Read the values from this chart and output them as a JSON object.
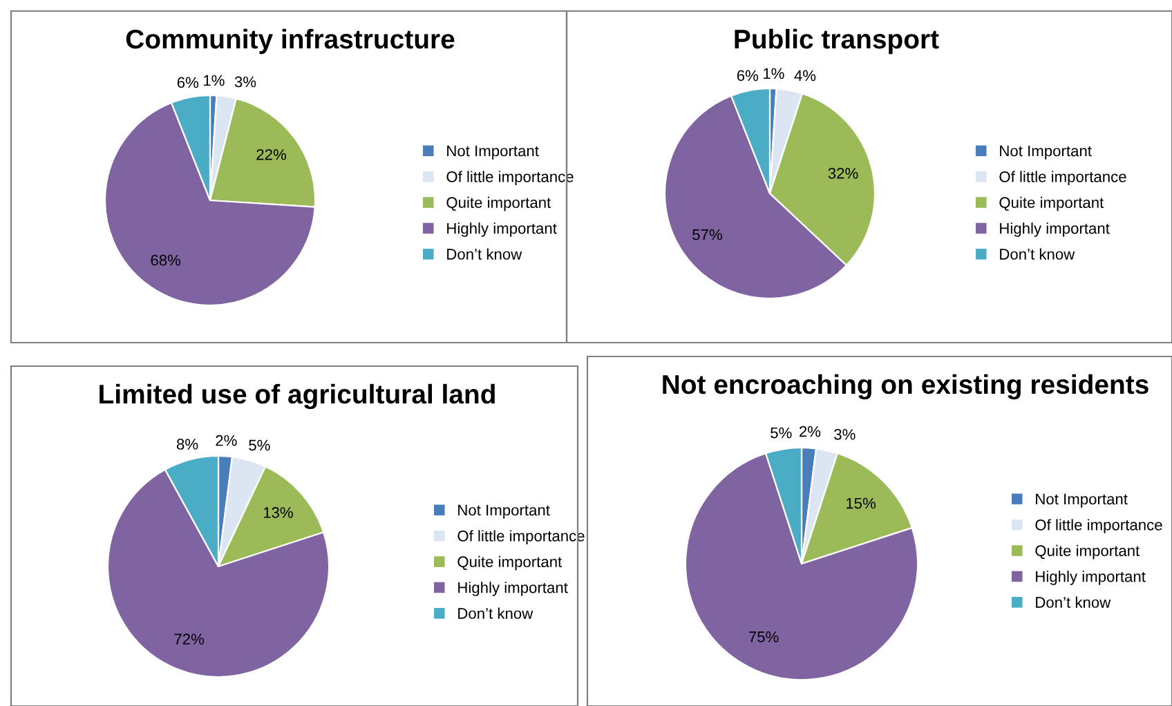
{
  "chart_data": [
    {
      "type": "pie",
      "title": "Community infrastructure",
      "categories": [
        "Not Important",
        "Of little importance",
        "Quite important",
        "Highly important",
        "Don’t know"
      ],
      "values": [
        1,
        3,
        22,
        68,
        6
      ],
      "value_labels": [
        "1%",
        "3%",
        "22%",
        "68%",
        "6%"
      ],
      "colors": [
        "#4a7ebb",
        "#dce6f2",
        "#9bbb59",
        "#8064a2",
        "#4bacc6"
      ],
      "legend": "right"
    },
    {
      "type": "pie",
      "title": "Public transport",
      "categories": [
        "Not Important",
        "Of little importance",
        "Quite important",
        "Highly important",
        "Don’t know"
      ],
      "values": [
        1,
        4,
        32,
        57,
        6
      ],
      "value_labels": [
        "1%",
        "4%",
        "32%",
        "57%",
        "6%"
      ],
      "colors": [
        "#4a7ebb",
        "#dce6f2",
        "#9bbb59",
        "#8064a2",
        "#4bacc6"
      ],
      "legend": "right"
    },
    {
      "type": "pie",
      "title": "Limited use of agricultural land",
      "categories": [
        "Not Important",
        "Of little importance",
        "Quite important",
        "Highly important",
        "Don’t know"
      ],
      "values": [
        2,
        5,
        13,
        72,
        8
      ],
      "value_labels": [
        "2%",
        "5%",
        "13%",
        "72%",
        "8%"
      ],
      "colors": [
        "#4a7ebb",
        "#dce6f2",
        "#9bbb59",
        "#8064a2",
        "#4bacc6"
      ],
      "legend": "right"
    },
    {
      "type": "pie",
      "title": "Not encroaching on existing residents",
      "categories": [
        "Not Important",
        "Of little importance",
        "Quite important",
        "Highly important",
        "Don’t know"
      ],
      "values": [
        2,
        3,
        15,
        75,
        5
      ],
      "value_labels": [
        "2%",
        "3%",
        "15%",
        "75%",
        "5%"
      ],
      "colors": [
        "#4a7ebb",
        "#dce6f2",
        "#9bbb59",
        "#8064a2",
        "#4bacc6"
      ],
      "legend": "right"
    }
  ]
}
